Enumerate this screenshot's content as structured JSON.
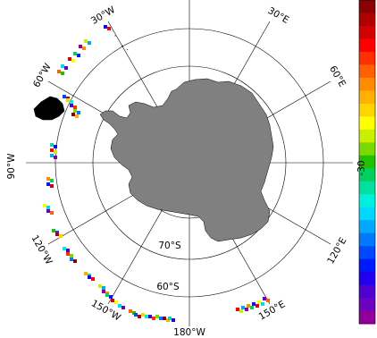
{
  "map": {
    "projection": "south-polar-stereographic",
    "land_color": "#808080",
    "coast_color": "#000000",
    "grid_color": "#000000",
    "background": "#ffffff"
  },
  "meridian_labels": {
    "w30": "30°W",
    "e30": "30°E",
    "w60": "60°W",
    "e60": "60°E",
    "w90": "90°W",
    "w120": "120°W",
    "e120": "120°E",
    "w150": "150°W",
    "e150": "150°E",
    "s180": "180°W"
  },
  "parallel_labels": {
    "s70": "70°S",
    "s60": "60°S"
  },
  "colorbar": {
    "label": "-30",
    "colors": [
      "#8b0000",
      "#b00000",
      "#d50000",
      "#ff0000",
      "#ff3000",
      "#ff6000",
      "#ff8c00",
      "#ffb000",
      "#ffd400",
      "#ffff00",
      "#c8f000",
      "#7cd900",
      "#22c000",
      "#00d060",
      "#00e0a0",
      "#00f0e0",
      "#00d8ff",
      "#00a8ff",
      "#0078ff",
      "#0048ff",
      "#0018ff",
      "#2000ee",
      "#5000d0",
      "#7000c0",
      "#900098"
    ]
  }
}
